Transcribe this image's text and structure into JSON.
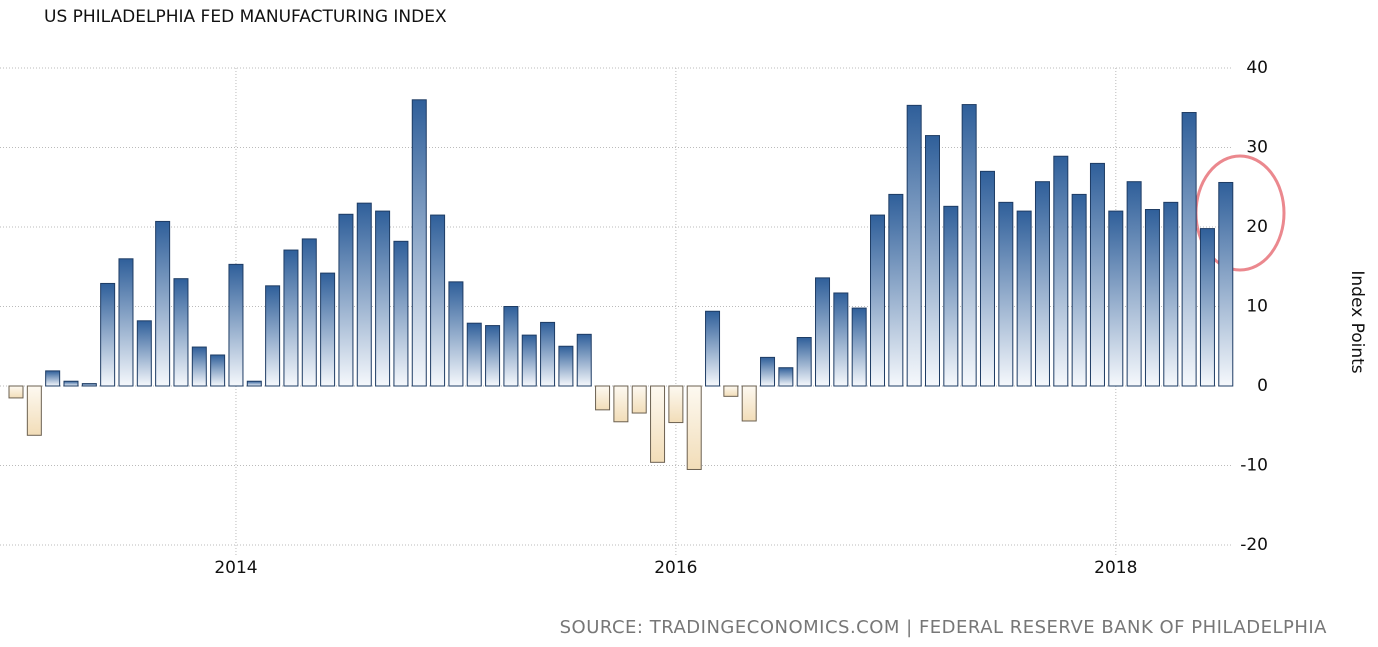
{
  "chart_data": {
    "type": "bar",
    "title": "US PHILADELPHIA FED MANUFACTURING INDEX",
    "source": "SOURCE: TRADINGECONOMICS.COM | FEDERAL RESERVE BANK OF PHILADELPHIA",
    "y_label": "Index Points",
    "categories": [
      null,
      null,
      null,
      null,
      null,
      null,
      null,
      null,
      null,
      null,
      null,
      null,
      "2014",
      null,
      null,
      null,
      null,
      null,
      null,
      null,
      null,
      null,
      null,
      null,
      null,
      null,
      null,
      null,
      null,
      null,
      null,
      null,
      null,
      null,
      null,
      null,
      "2016",
      null,
      null,
      null,
      null,
      null,
      null,
      null,
      null,
      null,
      null,
      null,
      null,
      null,
      null,
      null,
      null,
      null,
      null,
      null,
      null,
      null,
      null,
      null,
      "2018",
      null,
      null,
      null,
      null,
      null,
      null
    ],
    "values": [
      -1.5,
      -6.2,
      1.9,
      0.6,
      0.3,
      12.9,
      16.0,
      8.2,
      20.7,
      13.5,
      4.9,
      3.9,
      15.3,
      0.6,
      12.6,
      17.1,
      18.5,
      14.2,
      21.6,
      23.0,
      22.0,
      18.2,
      36.0,
      21.5,
      13.1,
      7.9,
      7.6,
      10.0,
      6.4,
      8.0,
      5.0,
      6.5,
      -3.0,
      -4.5,
      -3.4,
      -9.6,
      -4.6,
      -10.5,
      9.4,
      -1.3,
      -4.4,
      3.6,
      2.3,
      6.1,
      13.6,
      11.7,
      9.8,
      21.5,
      24.1,
      35.3,
      31.5,
      22.6,
      35.4,
      27.0,
      23.1,
      22.0,
      25.7,
      28.9,
      24.1,
      28.0,
      22.0,
      25.7,
      22.2,
      23.1,
      34.4,
      19.8,
      25.6
    ],
    "color": "#2f5f9a",
    "negative_color": "#f2ddb8",
    "ylim": [
      -20,
      40
    ],
    "yticks": [
      -20,
      -10,
      0,
      10,
      20,
      30,
      40
    ],
    "grid": true
  }
}
